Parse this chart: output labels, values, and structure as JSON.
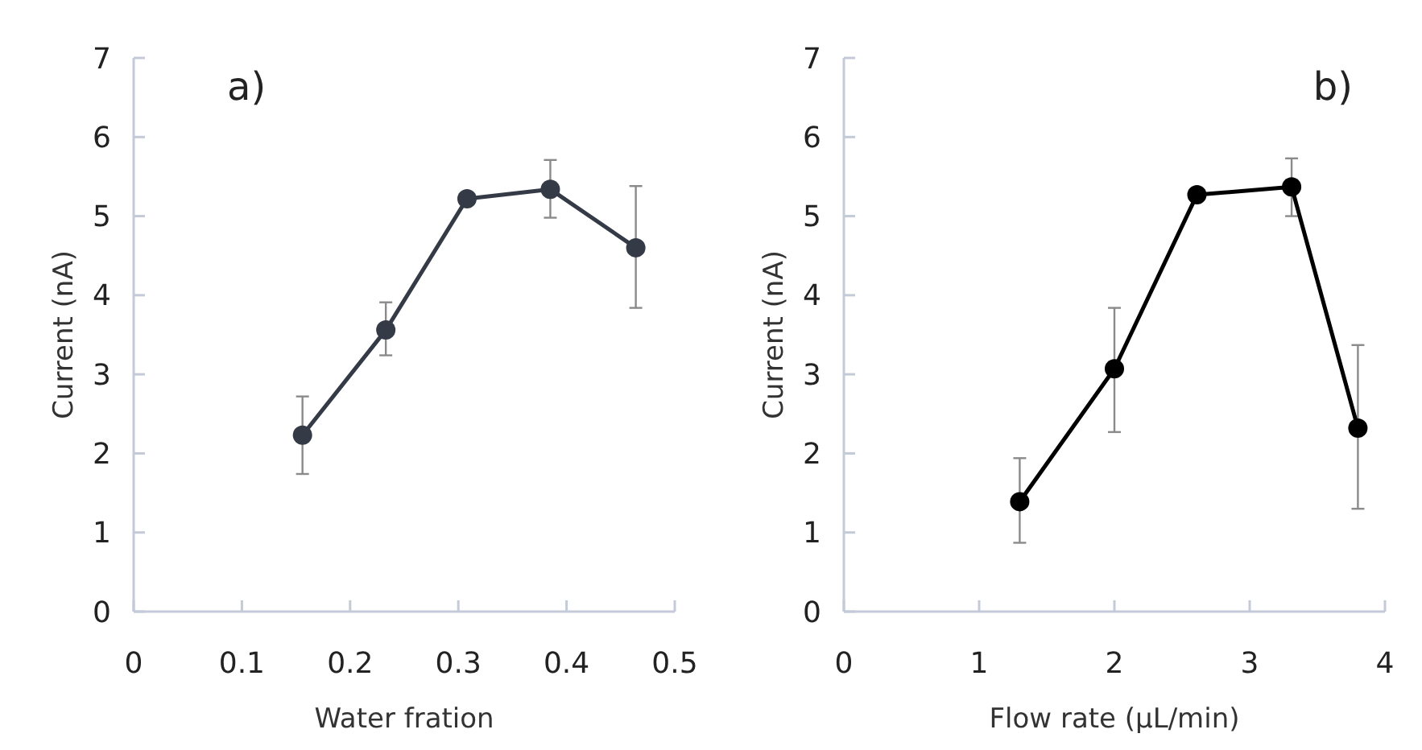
{
  "chart_data": [
    {
      "type": "line",
      "title": "a)",
      "xlabel": "Water fration",
      "ylabel": "Current (nA)",
      "xlim": [
        0,
        0.5
      ],
      "xticks": [
        0,
        0.1,
        0.2,
        0.3,
        0.4,
        0.5
      ],
      "ylim": [
        0,
        7
      ],
      "yticks": [
        0,
        1,
        2,
        3,
        4,
        5,
        6,
        7
      ],
      "grid": false,
      "marker": "circle",
      "line_style": "solid",
      "x": [
        0.156,
        0.233,
        0.308,
        0.385,
        0.464
      ],
      "series": [
        {
          "color": "#343a46",
          "values": [
            2.23,
            3.56,
            5.22,
            5.34,
            4.6
          ],
          "errors": [
            [
              1.74,
              2.72
            ],
            [
              3.24,
              3.91
            ],
            null,
            [
              4.98,
              5.71
            ],
            [
              3.84,
              5.38
            ]
          ]
        }
      ]
    },
    {
      "type": "line",
      "title": "b)",
      "xlabel": "Flow rate (µL/min)",
      "ylabel": "Current (nA)",
      "xlim": [
        0,
        4
      ],
      "xticks": [
        0,
        1,
        2,
        3,
        4
      ],
      "ylim": [
        0,
        7
      ],
      "yticks": [
        0,
        1,
        2,
        3,
        4,
        5,
        6,
        7
      ],
      "grid": false,
      "marker": "circle",
      "line_style": "solid",
      "x": [
        1.3,
        2.0,
        2.61,
        3.31,
        3.8
      ],
      "series": [
        {
          "color": "#000000",
          "values": [
            1.39,
            3.07,
            5.27,
            5.37,
            2.32
          ],
          "errors": [
            [
              0.87,
              1.94
            ],
            [
              2.27,
              3.84
            ],
            null,
            [
              5.0,
              5.73
            ],
            [
              1.3,
              3.37
            ]
          ]
        }
      ]
    }
  ]
}
